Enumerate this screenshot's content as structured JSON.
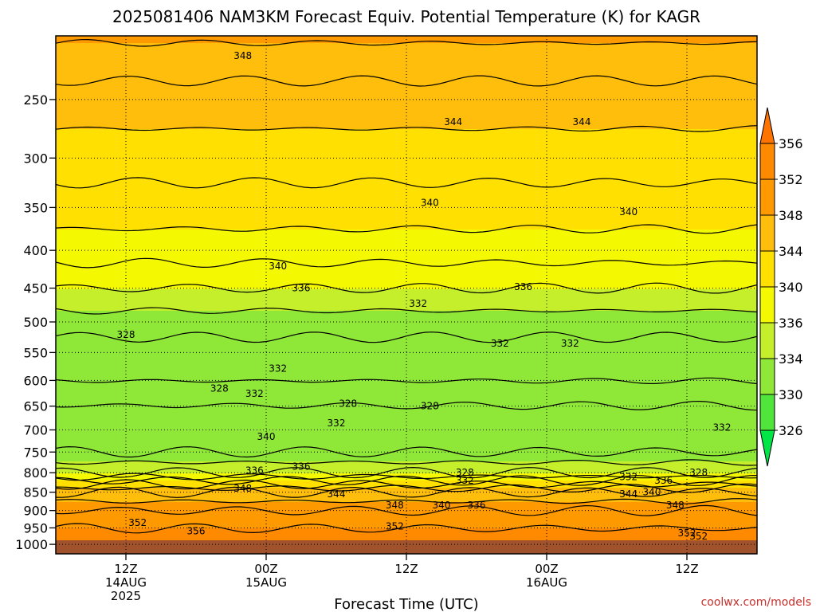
{
  "chart_data": {
    "type": "heatmap",
    "title": "2025081406 NAM3KM Forecast Equiv. Potential Temperature (K) for KAGR",
    "xlabel": "Forecast Time (UTC)",
    "ylabel": "",
    "y_scale": "log",
    "y_inverted": true,
    "ylim": [
      1030,
      205
    ],
    "y_ticks": [
      250,
      300,
      350,
      400,
      450,
      500,
      550,
      600,
      650,
      700,
      750,
      800,
      850,
      900,
      950,
      1000
    ],
    "x_ticks": [
      {
        "time": "2025-08-14T12Z",
        "label_lines": [
          "12Z",
          "14AUG",
          "2025"
        ]
      },
      {
        "time": "2025-08-15T00Z",
        "label_lines": [
          "00Z",
          "15AUG"
        ]
      },
      {
        "time": "2025-08-15T12Z",
        "label_lines": [
          "12Z"
        ]
      },
      {
        "time": "2025-08-16T00Z",
        "label_lines": [
          "00Z",
          "16AUG"
        ]
      },
      {
        "time": "2025-08-16T12Z",
        "label_lines": [
          "12Z"
        ]
      }
    ],
    "xlim": [
      "2025-08-14T06Z",
      "2025-08-16T18Z"
    ],
    "grid": true,
    "colorbar": {
      "levels": [
        326,
        330,
        334,
        336,
        340,
        344,
        348,
        352,
        356
      ],
      "colors": [
        "#00e646",
        "#4fe53a",
        "#8fe838",
        "#c5ef2a",
        "#f4f800",
        "#ffe000",
        "#ffbe0b",
        "#ff9900",
        "#ff8a00",
        "#ff7300"
      ]
    },
    "profile": [
      {
        "p": 1000,
        "theta_e": 352
      },
      {
        "p": 950,
        "theta_e": 352
      },
      {
        "p": 900,
        "theta_e": 350
      },
      {
        "p": 850,
        "theta_e": 346
      },
      {
        "p": 800,
        "theta_e": 336
      },
      {
        "p": 750,
        "theta_e": 332
      },
      {
        "p": 700,
        "theta_e": 331
      },
      {
        "p": 650,
        "theta_e": 330
      },
      {
        "p": 600,
        "theta_e": 330
      },
      {
        "p": 550,
        "theta_e": 331
      },
      {
        "p": 500,
        "theta_e": 333
      },
      {
        "p": 450,
        "theta_e": 336
      },
      {
        "p": 400,
        "theta_e": 339
      },
      {
        "p": 350,
        "theta_e": 341
      },
      {
        "p": 300,
        "theta_e": 343
      },
      {
        "p": 250,
        "theta_e": 345
      },
      {
        "p": 210,
        "theta_e": 348
      }
    ],
    "contour_interval": 4,
    "contour_labels": [
      {
        "time": "2025-08-14T22Z",
        "p": 218,
        "text": "348"
      },
      {
        "time": "2025-08-15T16Z",
        "p": 268,
        "text": "344"
      },
      {
        "time": "2025-08-16T03Z",
        "p": 268,
        "text": "344"
      },
      {
        "time": "2025-08-15T14Z",
        "p": 345,
        "text": "340"
      },
      {
        "time": "2025-08-16T07Z",
        "p": 355,
        "text": "340"
      },
      {
        "time": "2025-08-15T01Z",
        "p": 420,
        "text": "340"
      },
      {
        "time": "2025-08-15T03Z",
        "p": 450,
        "text": "336"
      },
      {
        "time": "2025-08-15T22Z",
        "p": 448,
        "text": "336"
      },
      {
        "time": "2025-08-15T13Z",
        "p": 472,
        "text": "332"
      },
      {
        "time": "2025-08-14T12Z",
        "p": 520,
        "text": "328"
      },
      {
        "time": "2025-08-15T20Z",
        "p": 535,
        "text": "332"
      },
      {
        "time": "2025-08-16T02Z",
        "p": 535,
        "text": "332"
      },
      {
        "time": "2025-08-15T01Z",
        "p": 578,
        "text": "332"
      },
      {
        "time": "2025-08-14T20Z",
        "p": 615,
        "text": "328"
      },
      {
        "time": "2025-08-14T23Z",
        "p": 625,
        "text": "332"
      },
      {
        "time": "2025-08-15T07Z",
        "p": 645,
        "text": "328"
      },
      {
        "time": "2025-08-15T14Z",
        "p": 650,
        "text": "328"
      },
      {
        "time": "2025-08-15T06Z",
        "p": 685,
        "text": "332"
      },
      {
        "time": "2025-08-16T15Z",
        "p": 695,
        "text": "332"
      },
      {
        "time": "2025-08-15T00Z",
        "p": 715,
        "text": "340"
      },
      {
        "time": "2025-08-14T23Z",
        "p": 795,
        "text": "336"
      },
      {
        "time": "2025-08-15T03Z",
        "p": 785,
        "text": "336"
      },
      {
        "time": "2025-08-15T17Z",
        "p": 800,
        "text": "328"
      },
      {
        "time": "2025-08-15T17Z",
        "p": 820,
        "text": "332"
      },
      {
        "time": "2025-08-16T07Z",
        "p": 810,
        "text": "332"
      },
      {
        "time": "2025-08-16T10Z",
        "p": 820,
        "text": "336"
      },
      {
        "time": "2025-08-16T13Z",
        "p": 800,
        "text": "328"
      },
      {
        "time": "2025-08-14T22Z",
        "p": 840,
        "text": "348"
      },
      {
        "time": "2025-08-15T06Z",
        "p": 855,
        "text": "344"
      },
      {
        "time": "2025-08-16T07Z",
        "p": 855,
        "text": "344"
      },
      {
        "time": "2025-08-16T09Z",
        "p": 850,
        "text": "340"
      },
      {
        "time": "2025-08-15T11Z",
        "p": 885,
        "text": "348"
      },
      {
        "time": "2025-08-15T15Z",
        "p": 885,
        "text": "340"
      },
      {
        "time": "2025-08-15T18Z",
        "p": 885,
        "text": "336"
      },
      {
        "time": "2025-08-16T11Z",
        "p": 885,
        "text": "348"
      },
      {
        "time": "2025-08-14T13Z",
        "p": 935,
        "text": "352"
      },
      {
        "time": "2025-08-14T18Z",
        "p": 960,
        "text": "356"
      },
      {
        "time": "2025-08-15T11Z",
        "p": 945,
        "text": "352"
      },
      {
        "time": "2025-08-16T12Z",
        "p": 965,
        "text": "352"
      },
      {
        "time": "2025-08-16T13Z",
        "p": 975,
        "text": "352"
      }
    ]
  },
  "credit": "coolwx.com/models"
}
